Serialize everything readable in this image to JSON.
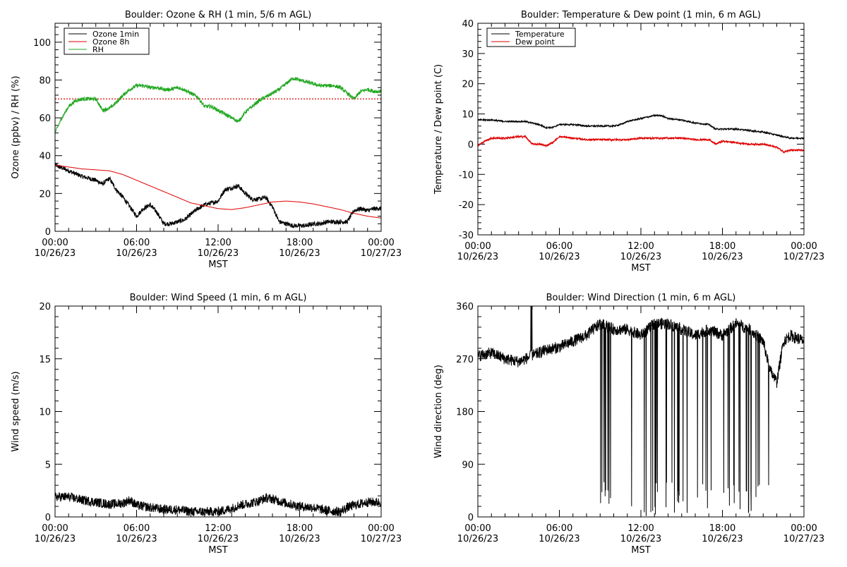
{
  "colors": {
    "black": "#000000",
    "red": "#e00000",
    "green": "#22a822"
  },
  "chart_data": [
    {
      "type": "line",
      "title": "Boulder: Ozone & RH (1 min, 5/6 m AGL)",
      "xlabel": "MST",
      "ylabel": "Ozone (ppbv) / RH (%)",
      "ylim": [
        0,
        110
      ],
      "yticks": [
        0,
        20,
        40,
        60,
        80,
        100
      ],
      "xlim": [
        0,
        24
      ],
      "xticks": [
        0,
        6,
        12,
        18,
        24
      ],
      "xticklabels": [
        [
          "00:00",
          "10/26/23"
        ],
        [
          "06:00",
          "10/26/23"
        ],
        [
          "12:00",
          "10/26/23"
        ],
        [
          "18:00",
          "10/26/23"
        ],
        [
          "00:00",
          "10/27/23"
        ]
      ],
      "legend": {
        "placement": "top-left",
        "entries": [
          {
            "name": "Ozone 1min",
            "color": "#000000"
          },
          {
            "name": "Ozone 8h",
            "color": "#e00000"
          },
          {
            "name": "RH",
            "color": "#22a822"
          }
        ]
      },
      "reference_line": {
        "y": 70,
        "color": "#e00000",
        "style": "dotted"
      },
      "series": [
        {
          "name": "Ozone 1min",
          "color": "#000000",
          "noise": 1.2,
          "x": [
            0,
            1,
            2,
            3,
            3.5,
            4,
            4.5,
            5,
            5.5,
            6,
            6.5,
            7,
            7.5,
            8,
            8.5,
            9,
            9.5,
            10,
            10.5,
            11,
            11.5,
            12,
            12.5,
            13,
            13.5,
            14,
            14.5,
            15,
            15.5,
            16,
            16.5,
            17,
            17.5,
            18,
            18.5,
            19,
            19.5,
            20,
            20.5,
            21,
            21.5,
            22,
            22.5,
            23,
            23.5,
            24
          ],
          "y": [
            35,
            32,
            29,
            27,
            25,
            28,
            22,
            18,
            13,
            8,
            12,
            14,
            10,
            4,
            4,
            5,
            6,
            9,
            12,
            14,
            15,
            16,
            22,
            23,
            24,
            20,
            17,
            17,
            18,
            13,
            5,
            4,
            3,
            3,
            3,
            4,
            4,
            5,
            5,
            5,
            5,
            11,
            12,
            11,
            12,
            12
          ]
        },
        {
          "name": "Ozone 8h",
          "color": "#e00000",
          "noise": 0,
          "x": [
            0,
            1,
            2,
            3,
            4,
            5,
            6,
            7,
            8,
            9,
            10,
            11,
            12,
            13,
            14,
            15,
            16,
            17,
            18,
            19,
            20,
            21,
            22,
            23,
            24
          ],
          "y": [
            35,
            34,
            33,
            32.5,
            32,
            30,
            27,
            24,
            21,
            18,
            15,
            13.5,
            12,
            11.5,
            12.5,
            14,
            15.5,
            16,
            15.5,
            14.5,
            13,
            11.5,
            9.5,
            8,
            7
          ]
        },
        {
          "name": "RH",
          "color": "#22a822",
          "noise": 1.0,
          "x": [
            0,
            0.5,
            1,
            1.5,
            2,
            2.5,
            3,
            3.5,
            4,
            4.5,
            5,
            5.5,
            6,
            6.5,
            7,
            7.5,
            8,
            8.5,
            9,
            9.5,
            10,
            10.5,
            11,
            11.5,
            12,
            12.5,
            13,
            13.5,
            14,
            14.5,
            15,
            15.5,
            16,
            16.5,
            17,
            17.5,
            18,
            18.5,
            19,
            19.5,
            20,
            20.5,
            21,
            21.5,
            22,
            22.5,
            23,
            23.5,
            24
          ],
          "y": [
            52,
            60,
            66,
            69,
            70,
            70,
            70,
            64,
            65,
            68,
            72,
            75,
            77,
            77,
            76,
            76,
            75,
            75,
            76,
            75,
            73,
            71,
            66,
            66,
            64,
            62,
            60,
            58,
            63,
            66,
            69,
            71,
            73,
            75,
            78,
            81,
            80,
            79,
            78,
            77,
            77,
            77,
            76,
            73,
            70,
            74,
            75,
            74,
            74
          ]
        }
      ]
    },
    {
      "type": "line",
      "title": "Boulder: Temperature & Dew point (1 min, 6 m AGL)",
      "xlabel": "MST",
      "ylabel": "Temperature / Dew point (C)",
      "ylim": [
        -30,
        40
      ],
      "yticks": [
        -30,
        -20,
        -10,
        0,
        10,
        20,
        30,
        40
      ],
      "xlim": [
        0,
        24
      ],
      "xticks": [
        0,
        6,
        12,
        18,
        24
      ],
      "xticklabels": [
        [
          "00:00",
          "10/26/23"
        ],
        [
          "06:00",
          "10/26/23"
        ],
        [
          "12:00",
          "10/26/23"
        ],
        [
          "18:00",
          "10/26/23"
        ],
        [
          "00:00",
          "10/27/23"
        ]
      ],
      "legend": {
        "placement": "top-left",
        "entries": [
          {
            "name": "Temperature",
            "color": "#000000"
          },
          {
            "name": "Dew point",
            "color": "#e00000"
          }
        ]
      },
      "series": [
        {
          "name": "Temperature",
          "color": "#000000",
          "noise": 0.25,
          "x": [
            0,
            1,
            2,
            3,
            3.5,
            4,
            4.5,
            5,
            5.5,
            6,
            7,
            8,
            9,
            10,
            10.5,
            11,
            11.5,
            12,
            12.5,
            13,
            13.5,
            14,
            15,
            16,
            17,
            17.5,
            18,
            19,
            20,
            21,
            22,
            23,
            24
          ],
          "y": [
            8,
            8,
            7.5,
            7.5,
            7.5,
            7,
            6.5,
            5.5,
            5.5,
            6.5,
            6.5,
            6,
            6,
            6,
            6.5,
            7.5,
            8,
            8.5,
            9,
            9.5,
            9.5,
            8.5,
            8,
            7,
            6.5,
            5,
            5,
            5,
            4.5,
            4,
            3,
            2,
            2
          ]
        },
        {
          "name": "Dew point",
          "color": "#e00000",
          "noise": 0.3,
          "x": [
            0,
            0.5,
            1,
            2,
            3,
            3.5,
            4,
            4.5,
            5,
            5.5,
            6,
            7,
            8,
            9,
            10,
            11,
            12,
            13,
            14,
            15,
            16,
            17,
            17.5,
            18,
            19,
            20,
            21,
            21.5,
            22,
            22.5,
            23,
            23.5,
            24
          ],
          "y": [
            -0.5,
            1,
            2,
            2,
            2.5,
            2.5,
            0,
            0,
            -0.5,
            0.5,
            2.5,
            2,
            1.5,
            1.5,
            1.5,
            1.5,
            2,
            2,
            2,
            2,
            1.5,
            1.5,
            0,
            1,
            0.5,
            0,
            0,
            -0.5,
            -1,
            -2.5,
            -2,
            -2,
            -2
          ]
        }
      ]
    },
    {
      "type": "line",
      "title": "Boulder: Wind Speed (1 min, 6 m AGL)",
      "xlabel": "MST",
      "ylabel": "Wind speed (m/s)",
      "ylim": [
        0,
        20
      ],
      "yticks": [
        0,
        5,
        10,
        15,
        20
      ],
      "xlim": [
        0,
        24
      ],
      "xticks": [
        0,
        6,
        12,
        18,
        24
      ],
      "xticklabels": [
        [
          "00:00",
          "10/26/23"
        ],
        [
          "06:00",
          "10/26/23"
        ],
        [
          "12:00",
          "10/26/23"
        ],
        [
          "18:00",
          "10/26/23"
        ],
        [
          "00:00",
          "10/27/23"
        ]
      ],
      "series": [
        {
          "name": "Wind speed",
          "color": "#000000",
          "noise": 0.45,
          "x": [
            0,
            1,
            2,
            3,
            4,
            5,
            5.5,
            6,
            7,
            8,
            9,
            10,
            11,
            12,
            13,
            13.5,
            14,
            15,
            15.5,
            16,
            17,
            18,
            19,
            20,
            21,
            21.5,
            22,
            23,
            24
          ],
          "y": [
            1.9,
            1.9,
            1.6,
            1.4,
            1.2,
            1.3,
            1.6,
            1.1,
            0.9,
            0.7,
            0.7,
            0.5,
            0.5,
            0.5,
            0.8,
            1.1,
            1.2,
            1.5,
            1.8,
            1.7,
            1.3,
            1.0,
            0.9,
            0.6,
            0.5,
            0.9,
            1.1,
            1.4,
            1.4
          ]
        }
      ]
    },
    {
      "type": "line",
      "title": "Boulder: Wind Direction (1 min, 6 m AGL)",
      "xlabel": "MST",
      "ylabel": "Wind direction (deg)",
      "ylim": [
        0,
        360
      ],
      "yticks": [
        0,
        90,
        180,
        270,
        360
      ],
      "xlim": [
        0,
        24
      ],
      "xticks": [
        0,
        6,
        12,
        18,
        24
      ],
      "xticklabels": [
        [
          "00:00",
          "10/26/23"
        ],
        [
          "06:00",
          "10/26/23"
        ],
        [
          "12:00",
          "10/26/23"
        ],
        [
          "18:00",
          "10/26/23"
        ],
        [
          "00:00",
          "10/27/23"
        ]
      ],
      "series": [
        {
          "name": "Wind direction",
          "color": "#000000",
          "noise": 10,
          "x": [
            0,
            1,
            2,
            3,
            4,
            5,
            6,
            7,
            8,
            8.5,
            9,
            10,
            11,
            12,
            13,
            14,
            15,
            16,
            17,
            18,
            19,
            20,
            21,
            21.5,
            22,
            22.5,
            23,
            24
          ],
          "y": [
            275,
            280,
            270,
            265,
            275,
            285,
            290,
            300,
            310,
            320,
            330,
            320,
            320,
            310,
            330,
            330,
            320,
            310,
            320,
            310,
            330,
            320,
            300,
            250,
            230,
            300,
            310,
            300
          ]
        }
      ]
    }
  ]
}
